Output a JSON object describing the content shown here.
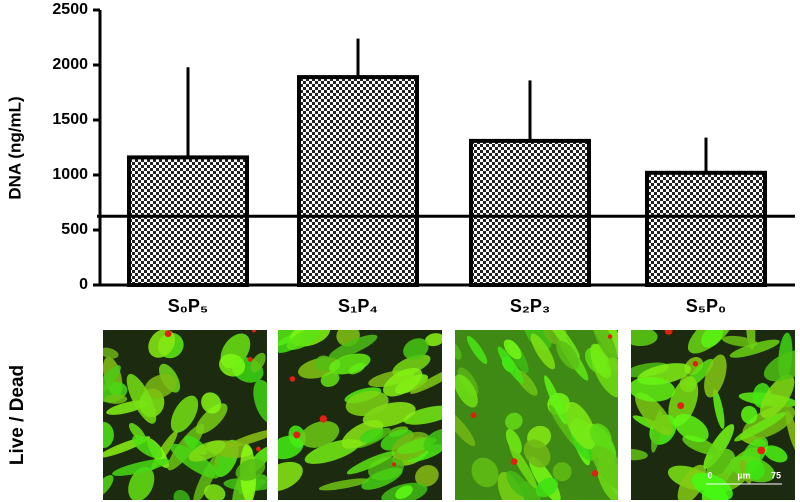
{
  "chart_data": {
    "type": "bar",
    "y_label": "DNA (ng/mL)",
    "categories": [
      "S₀P₅",
      "S₁P₄",
      "S₂P₃",
      "S₅P₀"
    ],
    "values": [
      1160,
      1890,
      1310,
      1020
    ],
    "errors": [
      820,
      350,
      550,
      320
    ],
    "reference_line": 625,
    "color": "#000000",
    "ylim": [
      0,
      2500
    ],
    "yticks": [
      0,
      500,
      1000,
      1500,
      2000,
      2500
    ]
  },
  "images": {
    "label": "Live / Dead",
    "scale_bar": {
      "min": 0,
      "unit": "µm",
      "max": 75
    }
  }
}
